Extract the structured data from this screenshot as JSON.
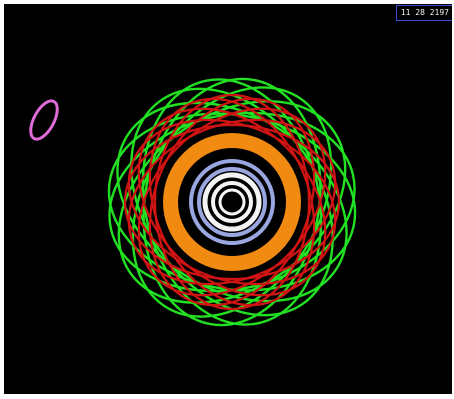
{
  "simulation": {
    "timestamp": "11 28 2197"
  },
  "colors": {
    "background": "#000000",
    "frame": "#ffffff",
    "timestamp_border": "#3b4bd6",
    "timestamp_text": "#f2f2f2",
    "green_orbits": "#22e022",
    "red_orbits": "#d01414",
    "orange_belt": "#f08a10",
    "blue_belt": "#9aa6e0",
    "white_rings": "#f4f4f4",
    "center_body": "#000000",
    "distant_orbit": "#e06ad8"
  }
}
